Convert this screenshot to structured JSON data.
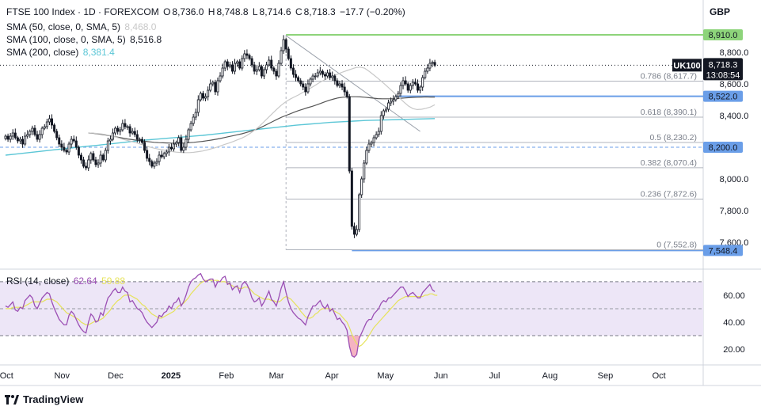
{
  "header": {
    "symbol_line": "FTSE 100 Index · 1D · FOREXCOM",
    "ohlc": [
      {
        "k": "O",
        "v": "8,736.0"
      },
      {
        "k": "H",
        "v": "8,748.8"
      },
      {
        "k": "L",
        "v": "8,714.6"
      },
      {
        "k": "C",
        "v": "8,718.3"
      }
    ],
    "change": "−17.7 (−0.20%)",
    "currency": "GBP"
  },
  "legend": {
    "sma50_label": "SMA (50, close, 0, SMA, 5)",
    "sma50_value": "8,468.0",
    "sma100_label": "SMA (100, close, 0, SMA, 5)",
    "sma100_value": "8,516.8",
    "sma200_label": "SMA (200, close)",
    "sma200_value": "8,381.4",
    "rsi_label": "RSI (14, close)",
    "rsi_value": "62.64",
    "rsi_ma_value": "59.88"
  },
  "colors": {
    "up": "#ffffff",
    "down": "#131722",
    "candle_outline": "#131722",
    "sma50": "#c8c8c8",
    "sma100": "#555555",
    "sma200": "#5bc6d6",
    "level_blue": "#6a9ee8",
    "level_green": "#8dd47a",
    "rsi_line": "#9b4fb4",
    "rsi_ma": "#e6e35a",
    "rsi_bg": "#ede6f7"
  },
  "chart_data": {
    "type": "candlestick",
    "title": "FTSE 100 Index · 1D · FOREXCOM",
    "price_axis": {
      "min": 7450,
      "max": 9010,
      "ticks": [
        "8,800.0",
        "8,600.0",
        "8,400.0",
        "8,000.0",
        "7,800.0",
        "7,600.0"
      ],
      "tick_values": [
        8800,
        8600,
        8400,
        8000,
        7800,
        7600
      ]
    },
    "time_axis": {
      "labels": [
        "Oct",
        "Nov",
        "Dec",
        "2025",
        "Feb",
        "Mar",
        "Apr",
        "May",
        "Jun",
        "Jul",
        "Aug",
        "Sep",
        "Oct"
      ],
      "label_dates": [
        "2024-10-01",
        "2024-11-01",
        "2024-12-01",
        "2025-01-01",
        "2025-02-01",
        "2025-03-01",
        "2025-04-01",
        "2025-05-01",
        "2025-06-01",
        "2025-07-01",
        "2025-08-01",
        "2025-09-01",
        "2025-10-01"
      ],
      "start_date": "2024-09-30",
      "end_date": "2025-10-16"
    },
    "closes": [
      8270,
      8250,
      8270,
      8290,
      8260,
      8240,
      8250,
      8220,
      8270,
      8280,
      8300,
      8320,
      8280,
      8250,
      8280,
      8320,
      8330,
      8360,
      8380,
      8340,
      8300,
      8260,
      8220,
      8200,
      8180,
      8170,
      8220,
      8250,
      8240,
      8200,
      8150,
      8120,
      8080,
      8070,
      8120,
      8160,
      8120,
      8090,
      8100,
      8150,
      8120,
      8180,
      8240,
      8250,
      8290,
      8320,
      8300,
      8310,
      8350,
      8330,
      8330,
      8290,
      8300,
      8280,
      8250,
      8250,
      8230,
      8180,
      8130,
      8110,
      8080,
      8100,
      8110,
      8150,
      8140,
      8160,
      8170,
      8200,
      8190,
      8220,
      8230,
      8260,
      8180,
      8200,
      8250,
      8310,
      8350,
      8390,
      8420,
      8500,
      8540,
      8510,
      8520,
      8560,
      8600,
      8610,
      8550,
      8620,
      8650,
      8700,
      8740,
      8710,
      8720,
      8680,
      8730,
      8740,
      8700,
      8760,
      8790,
      8780,
      8760,
      8720,
      8680,
      8690,
      8710,
      8650,
      8690,
      8720,
      8750,
      8700,
      8680,
      8650,
      8730,
      8810,
      8880,
      8820,
      8760,
      8700,
      8660,
      8640,
      8620,
      8600,
      8580,
      8550,
      8600,
      8630,
      8650,
      8650,
      8670,
      8680,
      8660,
      8650,
      8670,
      8640,
      8650,
      8620,
      8590,
      8600,
      8580,
      8550,
      8520,
      8050,
      7700,
      7650,
      7680,
      7900,
      8000,
      8100,
      8180,
      8220,
      8230,
      8260,
      8280,
      8300,
      8400,
      8430,
      8440,
      8480,
      8490,
      8500,
      8520,
      8540,
      8590,
      8620,
      8600,
      8560,
      8590,
      8610,
      8600,
      8560,
      8580,
      8640,
      8680,
      8700,
      8730,
      8736,
      8718
    ],
    "sma50": [
      8290,
      8289,
      8287,
      8284,
      8279,
      8273,
      8266,
      8258,
      8249,
      8242,
      8235,
      8227,
      8218,
      8209,
      8201,
      8194,
      8188,
      8183,
      8178,
      8173,
      8169,
      8167,
      8166,
      8166,
      8168,
      8172,
      8176,
      8182,
      8190,
      8198,
      8207,
      8217,
      8226,
      8236,
      8247,
      8258,
      8272,
      8290,
      8310,
      8333,
      8360,
      8387,
      8414,
      8441,
      8466,
      8487,
      8504,
      8518,
      8532,
      8548,
      8563,
      8579,
      8596,
      8613,
      8627,
      8640,
      8652,
      8664,
      8675,
      8685,
      8694,
      8703,
      8706,
      8699,
      8680,
      8658,
      8636,
      8612,
      8588,
      8562,
      8536,
      8510,
      8484,
      8460,
      8444,
      8438,
      8440,
      8446,
      8454,
      8468
    ],
    "sma100": [
      8290,
      8288,
      8285,
      8281,
      8277,
      8272,
      8267,
      8262,
      8257,
      8252,
      8248,
      8244,
      8240,
      8237,
      8234,
      8231,
      8229,
      8228,
      8227,
      8226,
      8226,
      8226,
      8227,
      8229,
      8231,
      8234,
      8237,
      8241,
      8245,
      8250,
      8255,
      8261,
      8267,
      8273,
      8279,
      8285,
      8293,
      8301,
      8310,
      8321,
      8334,
      8348,
      8362,
      8376,
      8389,
      8400,
      8411,
      8422,
      8432,
      8441,
      8450,
      8458,
      8467,
      8477,
      8488,
      8497,
      8505,
      8512,
      8516,
      8518,
      8519,
      8519,
      8518,
      8516,
      8513,
      8510,
      8507,
      8506,
      8506,
      8506,
      8507,
      8509,
      8511,
      8513,
      8515,
      8516,
      8517,
      8518,
      8517,
      8517
    ],
    "sma200": [
      8150,
      8158,
      8166,
      8174,
      8182,
      8190,
      8198,
      8206,
      8213,
      8221,
      8229,
      8237,
      8245,
      8251,
      8257,
      8263,
      8269,
      8275,
      8283,
      8291,
      8299,
      8307,
      8315,
      8323,
      8331,
      8339,
      8345,
      8351,
      8357,
      8361,
      8365,
      8369,
      8371,
      8373,
      8375,
      8377,
      8379,
      8381
    ],
    "levels": [
      {
        "label": "8,910.0",
        "value": 8910,
        "color": "#8dd47a"
      },
      {
        "label": "8,522.0",
        "value": 8522,
        "color": "#6a9ee8"
      },
      {
        "label": "8,200.0",
        "value": 8200,
        "color": "#6a9ee8"
      },
      {
        "label": "7,548.4",
        "value": 7548.4,
        "color": "#6a9ee8"
      }
    ],
    "current": {
      "symbol": "UK100",
      "price": "8,718.3",
      "value": 8718.3,
      "countdown": "13:08:54"
    },
    "fib": [
      {
        "label": "0.786 (8,617.7)",
        "value": 8617.7
      },
      {
        "label": "0.618 (8,390.1)",
        "value": 8390.1
      },
      {
        "label": "0.5 (8,230.2)",
        "value": 8230.2
      },
      {
        "label": "0.382 (8,070.4)",
        "value": 8070.4
      },
      {
        "label": "0.236 (7,872.6)",
        "value": 7872.6
      },
      {
        "label": "0 (7,552.8)",
        "value": 7552.8
      }
    ],
    "rsi": {
      "label": "RSI (14, close)",
      "ylim": [
        10,
        77
      ],
      "bands": [
        70,
        30
      ],
      "mid": 50,
      "ticks": [
        "60.00",
        "40.00",
        "20.00"
      ],
      "tick_values": [
        60,
        40,
        20
      ],
      "values": [
        52,
        51,
        53,
        55,
        49,
        48,
        51,
        50,
        56,
        58,
        60,
        58,
        52,
        50,
        54,
        58,
        60,
        62,
        61,
        55,
        50,
        46,
        42,
        40,
        38,
        38,
        45,
        48,
        46,
        42,
        38,
        35,
        33,
        32,
        40,
        46,
        44,
        40,
        41,
        47,
        45,
        52,
        58,
        60,
        63,
        65,
        62,
        62,
        66,
        63,
        62,
        55,
        56,
        53,
        50,
        49,
        47,
        43,
        40,
        38,
        36,
        38,
        40,
        45,
        44,
        47,
        48,
        52,
        50,
        54,
        55,
        58,
        52,
        55,
        60,
        66,
        70,
        72,
        73,
        75,
        76,
        72,
        70,
        71,
        72,
        72,
        66,
        70,
        70,
        73,
        74,
        68,
        69,
        64,
        66,
        67,
        62,
        68,
        70,
        68,
        64,
        58,
        55,
        56,
        58,
        52,
        55,
        59,
        63,
        57,
        55,
        52,
        58,
        65,
        70,
        62,
        55,
        50,
        47,
        45,
        43,
        42,
        40,
        38,
        44,
        48,
        52,
        52,
        54,
        56,
        52,
        50,
        53,
        48,
        50,
        46,
        42,
        43,
        40,
        38,
        34,
        22,
        15,
        14,
        16,
        28,
        32,
        36,
        40,
        42,
        42,
        46,
        48,
        50,
        54,
        56,
        55,
        58,
        58,
        60,
        62,
        64,
        66,
        66,
        63,
        59,
        61,
        62,
        60,
        58,
        58,
        62,
        64,
        66,
        68,
        64,
        62.64
      ],
      "ma": [
        50,
        50,
        50,
        51,
        51,
        51,
        51,
        51,
        52,
        53,
        54,
        55,
        55,
        55,
        55,
        55,
        56,
        57,
        57,
        57,
        56,
        55,
        53,
        51,
        49,
        47,
        46,
        45,
        44,
        43,
        42,
        40,
        39,
        38,
        38,
        39,
        40,
        41,
        41,
        42,
        43,
        45,
        47,
        49,
        52,
        54,
        56,
        57,
        59,
        60,
        60,
        60,
        59,
        58,
        57,
        55,
        53,
        52,
        50,
        48,
        46,
        45,
        44,
        43,
        43,
        44,
        45,
        46,
        47,
        48,
        50,
        52,
        53,
        54,
        56,
        58,
        61,
        63,
        65,
        67,
        69,
        70,
        71,
        71,
        71,
        71,
        71,
        71,
        70,
        70,
        70,
        69,
        68,
        67,
        66,
        66,
        65,
        65,
        66,
        66,
        65,
        63,
        61,
        60,
        59,
        58,
        57,
        57,
        57,
        56,
        56,
        55,
        55,
        56,
        58,
        59,
        58,
        57,
        55,
        53,
        51,
        48,
        46,
        44,
        43,
        43,
        44,
        46,
        47,
        49,
        50,
        50,
        50,
        50,
        49,
        48,
        47,
        46,
        44,
        42,
        40,
        36,
        31,
        27,
        24,
        22,
        23,
        25,
        27,
        30,
        33,
        36,
        38,
        40,
        42,
        44,
        46,
        48,
        50,
        52,
        54,
        56,
        57,
        58,
        59,
        59,
        59,
        59,
        59,
        59,
        59,
        59,
        60,
        60,
        61,
        61,
        60,
        59.88
      ]
    }
  }
}
